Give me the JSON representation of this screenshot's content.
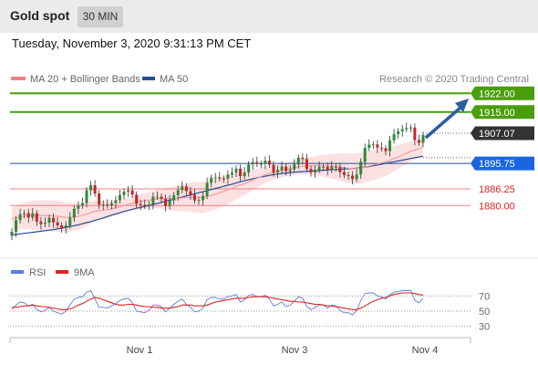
{
  "header": {
    "title": "Gold spot",
    "timeframe": "30 MIN",
    "datetime": "Tuesday, November 3, 2020 9:31:13 PM CET"
  },
  "legend": {
    "ma20_label": "MA 20 + Bollinger Bands",
    "ma50_label": "MA 50",
    "copyright": "Research © 2020 Trading Central"
  },
  "colors": {
    "resistance": "#4a9e0b",
    "pivot": "#333333",
    "support_line": "#f08080",
    "support_text": "#dd2222",
    "ma50": "#1f4e96",
    "ma20": "#f2a0a0",
    "bollinger": "#fadcdc",
    "candle_up": "#2d8a3a",
    "candle_down": "#cc2222",
    "arrow": "#2a5ea0",
    "rsi": "#5b7fdc",
    "rsi_ma": "#dd2222"
  },
  "chart_data": {
    "type": "candlestick",
    "price_range": [
      1862,
      1932
    ],
    "levels": [
      {
        "value": 1922.0,
        "label": "1922.00",
        "type": "resistance"
      },
      {
        "value": 1915.0,
        "label": "1915.00",
        "type": "resistance"
      },
      {
        "value": 1907.07,
        "label": "1907.07",
        "type": "pivot"
      },
      {
        "value": 1895.75,
        "label": "1895.75",
        "type": "pivot_line"
      },
      {
        "value": 1886.25,
        "label": "1886.25",
        "type": "support"
      },
      {
        "value": 1880.0,
        "label": "1880.00",
        "type": "support"
      }
    ],
    "x_ticks": [
      "Nov 1",
      "Nov 3",
      "Nov 4"
    ],
    "close_series": [
      1870.2,
      1874.5,
      1876.8,
      1877.2,
      1875.5,
      1877.1,
      1874.0,
      1873.1,
      1873.6,
      1875.4,
      1873.7,
      1872.6,
      1871.5,
      1872.6,
      1875.5,
      1878.8,
      1880.0,
      1880.9,
      1885.7,
      1887.6,
      1884.5,
      1880.3,
      1880.4,
      1880.1,
      1880.9,
      1882.0,
      1883.9,
      1885.2,
      1885.7,
      1884.1,
      1880.6,
      1880.3,
      1879.9,
      1880.5,
      1883.3,
      1883.3,
      1882.5,
      1879.8,
      1881.9,
      1883.9,
      1885.8,
      1887.2,
      1885.4,
      1884.1,
      1881.9,
      1882.0,
      1883.6,
      1888.5,
      1890.4,
      1890.6,
      1890.2,
      1890.1,
      1891.6,
      1892.3,
      1893.8,
      1891.0,
      1892.4,
      1895.4,
      1896.3,
      1895.6,
      1895.6,
      1896.8,
      1895.3,
      1892.4,
      1893.3,
      1894.6,
      1892.9,
      1893.5,
      1895.4,
      1897.9,
      1897.4,
      1893.7,
      1892.4,
      1893.4,
      1894.5,
      1894.5,
      1893.3,
      1894.6,
      1894.4,
      1892.5,
      1891.4,
      1891.2,
      1889.9,
      1891.6,
      1896.4,
      1901.6,
      1902.8,
      1902.9,
      1901.7,
      1901.4,
      1900.4,
      1904.4,
      1906.7,
      1907.8,
      1908.6,
      1909.0,
      1909.2,
      1904.5,
      1903.5,
      1906.4
    ],
    "ma20": [
      1875.0,
      1875.4,
      1875.8,
      1876.1,
      1876.3,
      1876.4,
      1876.4,
      1876.3,
      1876.2,
      1876.2,
      1876.1,
      1876.0,
      1875.8,
      1875.6,
      1875.6,
      1875.8,
      1876.0,
      1876.3,
      1876.8,
      1877.4,
      1877.9,
      1878.1,
      1878.3,
      1878.5,
      1878.8,
      1879.1,
      1879.5,
      1880.0,
      1880.5,
      1880.9,
      1881.2,
      1881.5,
      1881.8,
      1882.0,
      1882.3,
      1882.5,
      1882.6,
      1882.6,
      1882.6,
      1882.6,
      1882.7,
      1882.9,
      1883.0,
      1883.1,
      1883.1,
      1883.1,
      1883.1,
      1883.4,
      1883.8,
      1884.3,
      1884.8,
      1885.3,
      1885.9,
      1886.5,
      1887.2,
      1887.7,
      1888.2,
      1888.9,
      1889.6,
      1890.2,
      1890.9,
      1891.5,
      1892.0,
      1892.4,
      1892.8,
      1893.2,
      1893.5,
      1893.8,
      1894.1,
      1894.5,
      1894.7,
      1894.8,
      1894.9,
      1894.9,
      1894.9,
      1894.8,
      1894.8,
      1894.7,
      1894.6,
      1894.4,
      1894.2,
      1894.0,
      1893.8,
      1893.8,
      1894.0,
      1894.4,
      1894.8,
      1895.2,
      1895.6,
      1896.0,
      1896.3,
      1896.9,
      1897.6,
      1898.2,
      1898.9,
      1899.6,
      1900.3,
      1900.8,
      1901.3,
      1901.9
    ],
    "ma50": [
      1869.0,
      1869.2,
      1869.4,
      1869.6,
      1869.8,
      1870.0,
      1870.2,
      1870.4,
      1870.6,
      1870.8,
      1871.0,
      1871.3,
      1871.6,
      1871.9,
      1872.2,
      1872.5,
      1872.8,
      1873.2,
      1873.6,
      1874.0,
      1874.5,
      1874.9,
      1875.4,
      1875.9,
      1876.4,
      1876.9,
      1877.3,
      1877.8,
      1878.2,
      1878.6,
      1879.0,
      1879.3,
      1879.7,
      1880.0,
      1880.4,
      1880.8,
      1881.2,
      1881.6,
      1882.0,
      1882.4,
      1882.8,
      1883.2,
      1883.6,
      1884.0,
      1884.4,
      1884.8,
      1885.2,
      1885.6,
      1886.0,
      1886.4,
      1886.8,
      1887.2,
      1887.6,
      1888.0,
      1888.5,
      1888.9,
      1889.3,
      1889.7,
      1890.0,
      1890.4,
      1890.7,
      1891.0,
      1891.3,
      1891.6,
      1891.8,
      1892.0,
      1892.2,
      1892.4,
      1892.5,
      1892.6,
      1892.7,
      1892.8,
      1892.9,
      1893.0,
      1893.1,
      1893.2,
      1893.3,
      1893.4,
      1893.5,
      1893.6,
      1893.7,
      1893.8,
      1893.9,
      1894.0,
      1894.2,
      1894.4,
      1894.6,
      1894.9,
      1895.2,
      1895.5,
      1895.8,
      1896.1,
      1896.4,
      1896.7,
      1897.0,
      1897.3,
      1897.6,
      1897.9,
      1898.2,
      1898.5
    ],
    "rsi": {
      "range": [
        20,
        80
      ],
      "levels": [
        70,
        50,
        30
      ],
      "values": [
        52,
        58,
        62,
        61,
        57,
        59,
        52,
        49,
        51,
        55,
        50,
        48,
        46,
        50,
        58,
        66,
        68,
        69,
        75,
        77,
        66,
        55,
        55,
        54,
        57,
        60,
        64,
        66,
        67,
        61,
        50,
        49,
        48,
        51,
        58,
        58,
        56,
        49,
        54,
        59,
        63,
        66,
        59,
        55,
        49,
        50,
        54,
        65,
        68,
        68,
        66,
        66,
        69,
        70,
        72,
        62,
        65,
        71,
        72,
        69,
        69,
        71,
        66,
        57,
        59,
        62,
        56,
        58,
        63,
        69,
        67,
        56,
        52,
        55,
        58,
        58,
        54,
        58,
        57,
        51,
        48,
        48,
        45,
        51,
        64,
        73,
        74,
        74,
        70,
        69,
        66,
        72,
        75,
        76,
        77,
        77,
        77,
        64,
        61,
        67
      ],
      "ma9": [
        55,
        55,
        56,
        57,
        57,
        58,
        57,
        56,
        56,
        55,
        54,
        53,
        52,
        52,
        53,
        55,
        58,
        60,
        63,
        66,
        68,
        67,
        65,
        63,
        61,
        59,
        58,
        58,
        59,
        59,
        58,
        57,
        56,
        56,
        55,
        55,
        54,
        54,
        54,
        55,
        56,
        58,
        58,
        58,
        57,
        57,
        57,
        58,
        60,
        62,
        63,
        64,
        65,
        66,
        67,
        67,
        67,
        68,
        69,
        69,
        69,
        69,
        68,
        67,
        66,
        65,
        64,
        63,
        63,
        62,
        62,
        61,
        60,
        59,
        59,
        58,
        57,
        57,
        56,
        55,
        54,
        53,
        52,
        52,
        54,
        57,
        60,
        63,
        65,
        67,
        68,
        70,
        72,
        73,
        74,
        74,
        74,
        73,
        72,
        71
      ],
      "legend_rsi": "RSI",
      "legend_ma": "9MA"
    }
  }
}
